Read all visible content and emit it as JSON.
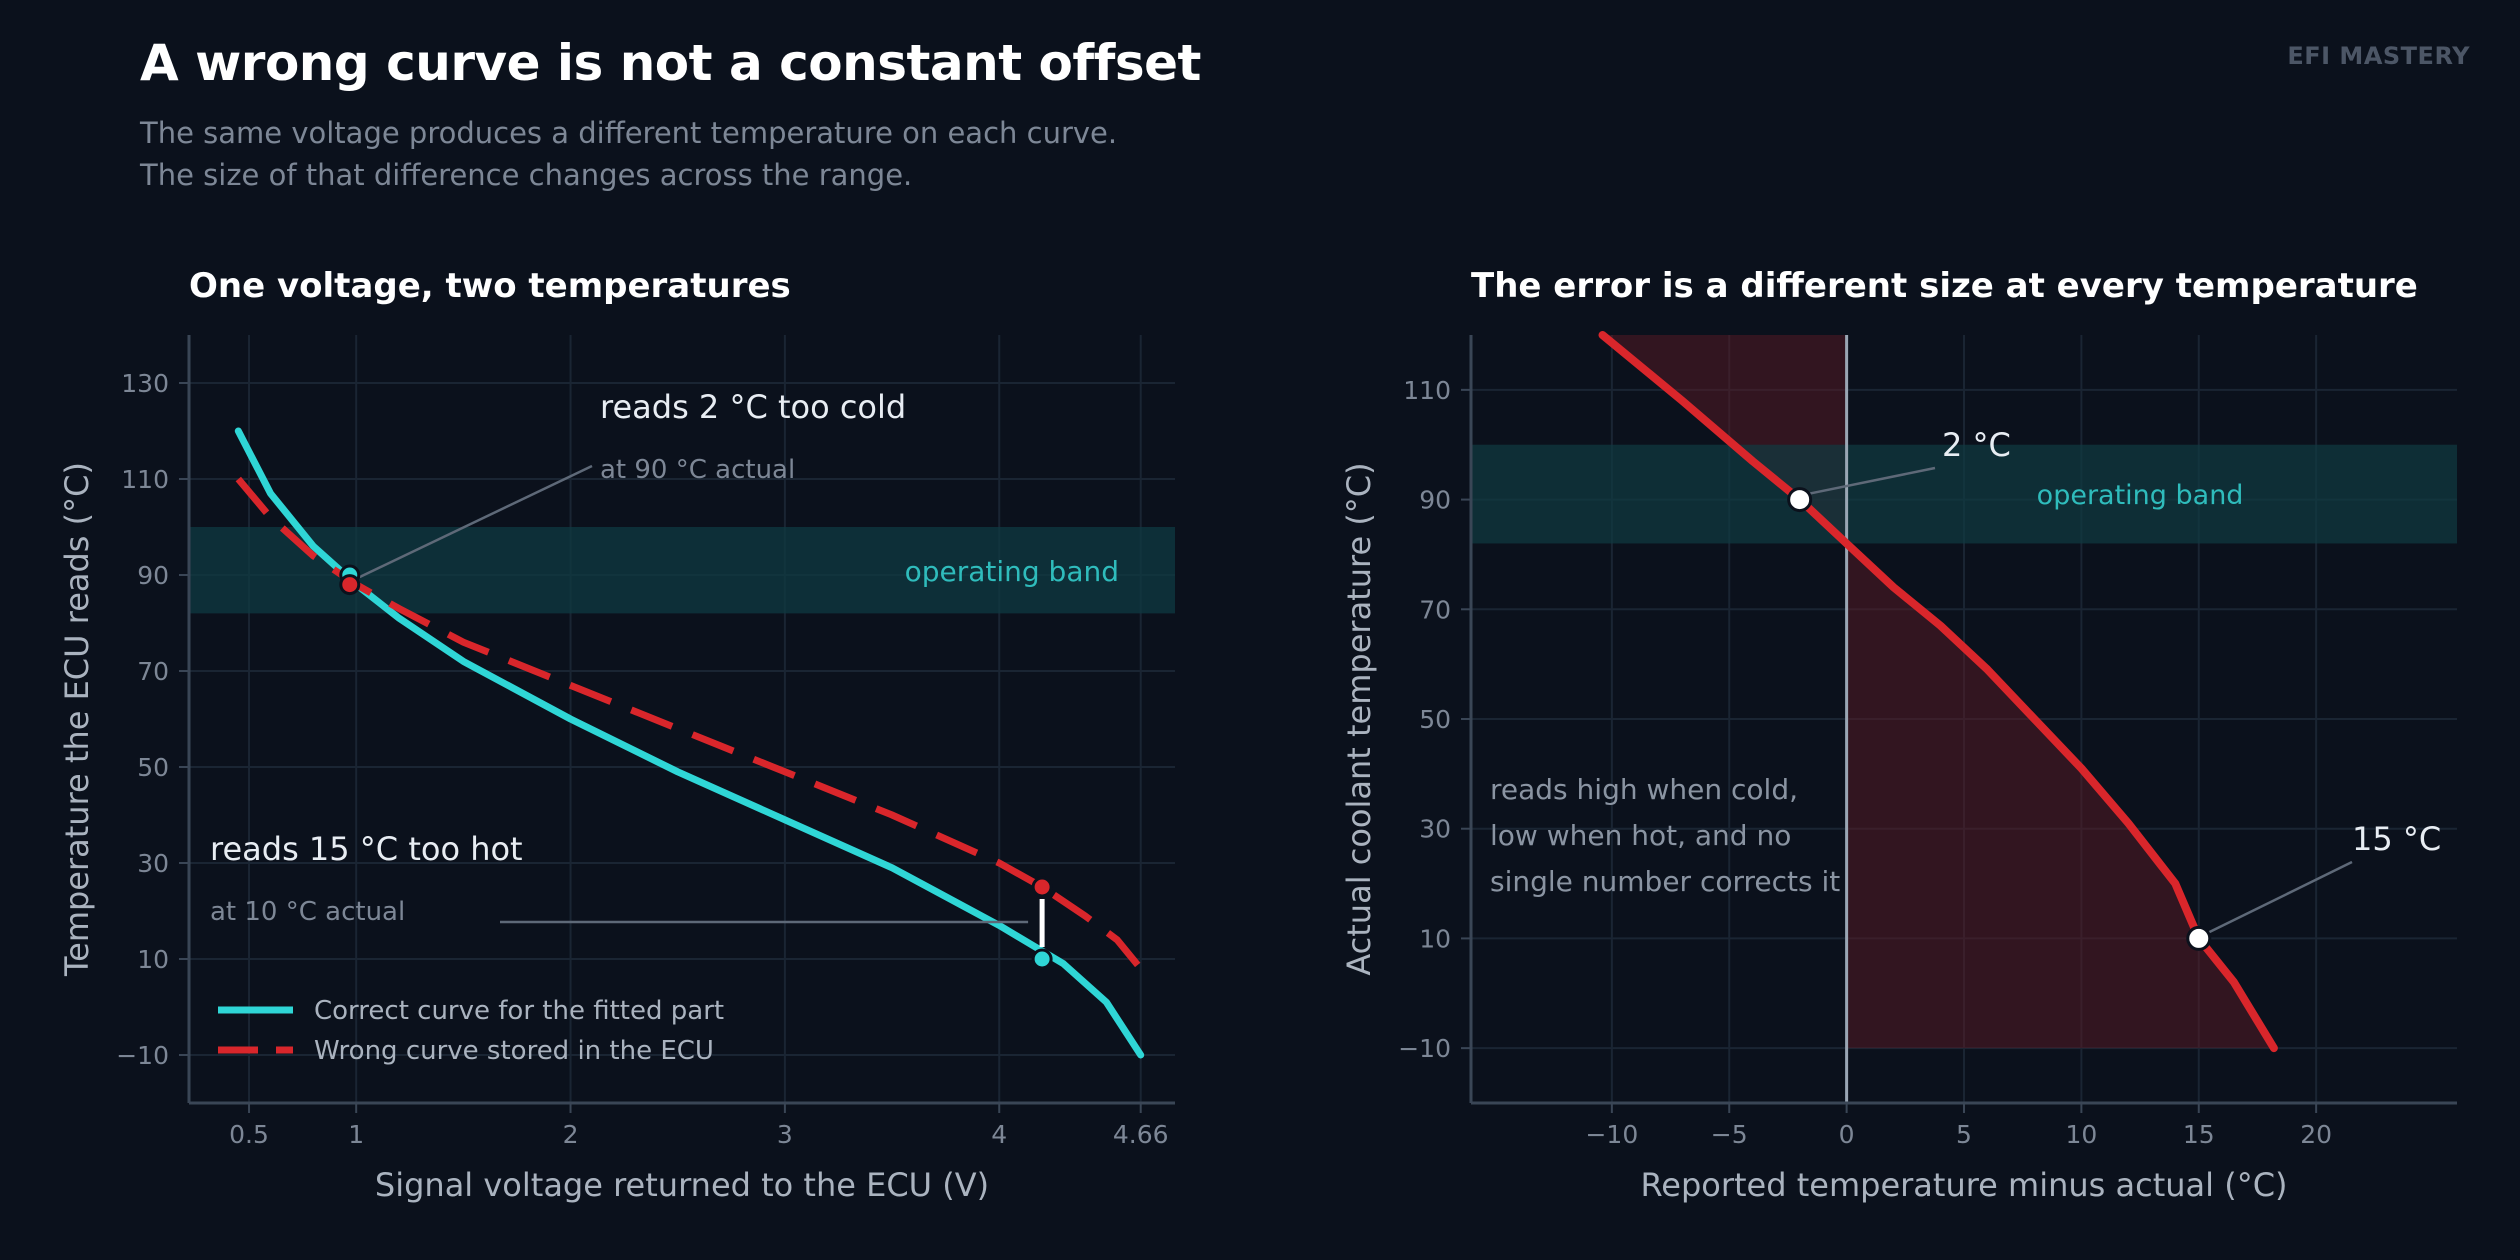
{
  "header": {
    "title": "A wrong curve is not a constant offset",
    "subtitle_line1": "The same voltage produces a different temperature on each curve.",
    "subtitle_line2": "The size of that difference changes across the range.",
    "brand": "EFI MASTERY"
  },
  "colors": {
    "background": "#0b111c",
    "correct_curve": "#2fd6d6",
    "wrong_curve": "#d9262b",
    "band_fill": "#0f3a42",
    "band_text": "#2fbcbc",
    "axis": "#3a4656",
    "grid": "#1a2533",
    "tick_text": "#7d8796"
  },
  "chart_data": [
    {
      "type": "line",
      "title": "One voltage, two temperatures",
      "xlabel": "Signal voltage returned to the ECU  (V)",
      "ylabel": "Temperature the ECU reads  (°C)",
      "xlim": [
        0.22,
        4.82
      ],
      "ylim": [
        -20,
        140
      ],
      "xticks": [
        0.5,
        1,
        2,
        3,
        4,
        4.66
      ],
      "xtick_labels": [
        "0.5",
        "1",
        "2",
        "3",
        "4",
        "4.66"
      ],
      "yticks": [
        -10,
        10,
        30,
        50,
        70,
        90,
        110,
        130
      ],
      "ytick_labels": [
        "−10",
        "10",
        "30",
        "50",
        "70",
        "90",
        "110",
        "130"
      ],
      "grid": true,
      "legend_position": "bottom-left",
      "band": {
        "y0": 82,
        "y1": 100,
        "label": "operating band"
      },
      "series": [
        {
          "name": "Correct curve for the fitted part",
          "style": "solid",
          "x": [
            0.45,
            0.6,
            0.8,
            1.0,
            1.2,
            1.5,
            2.0,
            2.5,
            3.0,
            3.5,
            4.0,
            4.3,
            4.5,
            4.66
          ],
          "y": [
            120,
            107,
            96,
            88,
            81,
            72,
            60,
            49,
            39,
            29,
            17,
            9,
            1,
            -10
          ]
        },
        {
          "name": "Wrong curve stored in the ECU",
          "style": "dashed",
          "x": [
            0.45,
            0.6,
            0.8,
            1.0,
            1.2,
            1.5,
            2.0,
            2.5,
            3.0,
            3.5,
            4.0,
            4.2,
            4.4,
            4.55,
            4.66
          ],
          "y": [
            110,
            102,
            94,
            88,
            83,
            76,
            67,
            58,
            49,
            40,
            30,
            25,
            19,
            14,
            8
          ]
        }
      ],
      "markers": [
        {
          "series": "Correct curve for the fitted part",
          "x": 0.97,
          "y": 90
        },
        {
          "series": "Wrong curve stored in the ECU",
          "x": 0.97,
          "y": 88
        },
        {
          "series": "Wrong curve stored in the ECU",
          "x": 4.2,
          "y": 25
        },
        {
          "series": "Correct curve for the fitted part",
          "x": 4.2,
          "y": 10
        }
      ],
      "annotations": [
        {
          "text": "reads 2 °C too cold",
          "subtext": "at 90 °C actual"
        },
        {
          "text": "reads 15 °C too hot",
          "subtext": "at 10 °C actual"
        }
      ]
    },
    {
      "type": "line",
      "title": "The error is a different size at every temperature",
      "xlabel": "Reported temperature minus actual  (°C)",
      "ylabel": "Actual coolant temperature  (°C)",
      "xlim": [
        -16,
        26
      ],
      "ylim": [
        -20,
        120
      ],
      "xticks": [
        -10,
        -5,
        0,
        5,
        10,
        15,
        20
      ],
      "xtick_labels": [
        "−10",
        "−5",
        "0",
        "5",
        "10",
        "15",
        "20"
      ],
      "yticks": [
        -10,
        10,
        30,
        50,
        70,
        90,
        110
      ],
      "ytick_labels": [
        "−10",
        "10",
        "30",
        "50",
        "70",
        "90",
        "110"
      ],
      "grid": true,
      "band": {
        "y0": 82,
        "y1": 100,
        "label": "operating band"
      },
      "zero_line_x": 0,
      "series": [
        {
          "name": "",
          "x": [
            -10.4,
            -7,
            -4,
            -2,
            0,
            2,
            4,
            6,
            8,
            10,
            12,
            14,
            15,
            16.5,
            18.2
          ],
          "y": [
            120,
            108,
            97,
            90,
            82,
            74,
            67,
            59,
            50,
            41,
            31,
            20,
            10,
            2,
            -10
          ]
        }
      ],
      "shaded_region": {
        "y0": -10,
        "y1": 120
      },
      "markers": [
        {
          "x": -2,
          "y": 90,
          "label": "2 °C"
        },
        {
          "x": 15,
          "y": 10,
          "label": "15 °C"
        }
      ],
      "note_lines": [
        "reads high when cold,",
        "low when hot, and no",
        "single number corrects it"
      ]
    }
  ]
}
